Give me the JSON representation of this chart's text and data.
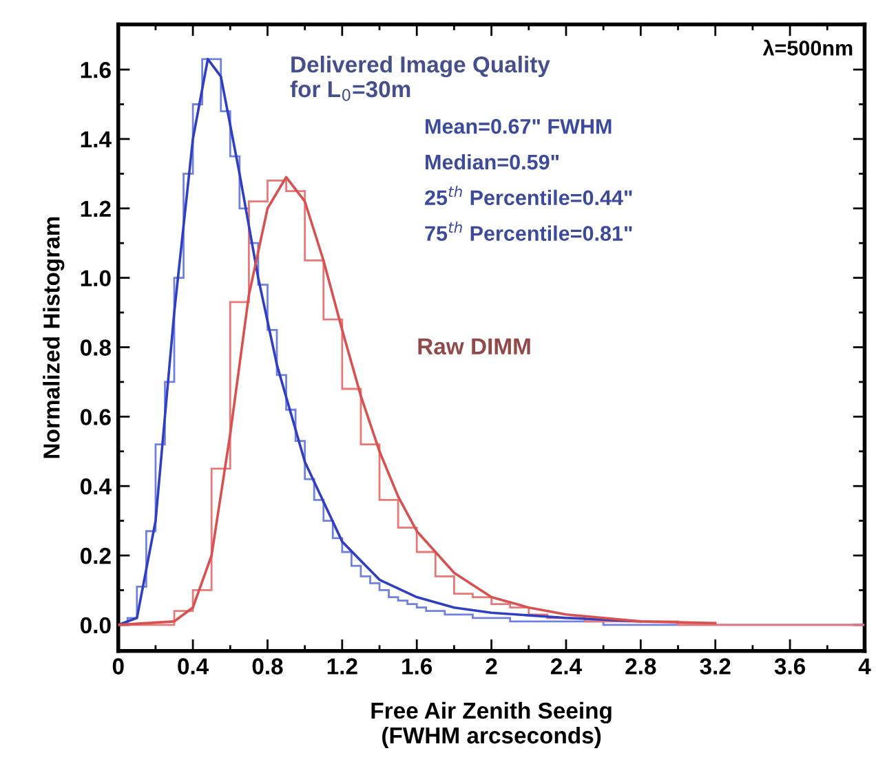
{
  "chart_data": {
    "type": "histogram",
    "xlabel": "Free Air Zenith Seeing\n(FWHM arcseconds)",
    "ylabel": "Normalized Histogram",
    "xlim": [
      0,
      4
    ],
    "ylim": [
      -0.075,
      1.73
    ],
    "xticks": [
      0,
      {
        "value": 0.2,
        "label": null
      },
      0.4,
      {
        "value": 0.6,
        "label": null
      },
      0.8,
      {
        "value": 1.0,
        "label": null
      },
      1.2,
      {
        "value": 1.4,
        "label": null
      },
      1.6,
      {
        "value": 1.8,
        "label": null
      },
      2,
      {
        "value": 2.2,
        "label": null
      },
      2.4,
      {
        "value": 2.6,
        "label": null
      },
      2.8,
      {
        "value": 3.0,
        "label": null
      },
      3.2,
      {
        "value": 3.4,
        "label": null
      },
      3.6,
      {
        "value": 3.8,
        "label": null
      },
      4
    ],
    "yticks": [
      {
        "value": 0,
        "label": "0.0"
      },
      {
        "value": 0.1,
        "label": null
      },
      0.2,
      {
        "value": 0.3,
        "label": null
      },
      0.4,
      {
        "value": 0.5,
        "label": null
      },
      0.6,
      {
        "value": 0.7,
        "label": null
      },
      0.8,
      {
        "value": 0.9,
        "label": null
      },
      {
        "value": 1.0,
        "label": "1.0"
      },
      {
        "value": 1.1,
        "label": null
      },
      1.2,
      {
        "value": 1.3,
        "label": null
      },
      1.4,
      {
        "value": 1.5,
        "label": null
      },
      1.6
    ],
    "grid": false,
    "legend": false,
    "annotations": [
      "λ=500nm",
      "Mean=0.67\" FWHM",
      "Median=0.59\"",
      "25$^{th}$ Percentile=0.44\"",
      "75$^{th}$ Percentile=0.81\""
    ],
    "bins": [
      0,
      0.05,
      0.1,
      0.15,
      0.2,
      0.25,
      0.3,
      0.35,
      0.4,
      0.45,
      0.5,
      0.55,
      0.6,
      0.65,
      0.7,
      0.75,
      0.8,
      0.85,
      0.9,
      0.95,
      1.0,
      1.05,
      1.1,
      1.15,
      1.2,
      1.25,
      1.3,
      1.35,
      1.4,
      1.45,
      1.5,
      1.55,
      1.6,
      1.65,
      1.7,
      1.75,
      1.8,
      1.85,
      1.9,
      1.95,
      2.0,
      2.05,
      2.1,
      2.15,
      2.2,
      2.25,
      2.3,
      2.35,
      2.4,
      2.45,
      2.5,
      2.55,
      2.6,
      2.65,
      2.7,
      2.75,
      2.8,
      2.85,
      2.9,
      2.95,
      3.0,
      3.05,
      3.1,
      3.15,
      3.2,
      3.25,
      3.3,
      3.35,
      3.4,
      3.45,
      3.5,
      3.55,
      3.6,
      3.65,
      3.7,
      3.75,
      3.8,
      3.85,
      3.9,
      3.95,
      4.0
    ],
    "series": [
      {
        "name": "Delivered Image Quality\nfor L$_{0}$=30m",
        "color": "#7080e0",
        "values": [
          0,
          0.02,
          0.11,
          0.27,
          0.52,
          0.7,
          1.0,
          1.3,
          1.5,
          1.63,
          1.63,
          1.48,
          1.35,
          1.2,
          1.1,
          0.98,
          0.85,
          0.72,
          0.62,
          0.53,
          0.42,
          0.36,
          0.3,
          0.25,
          0.21,
          0.17,
          0.14,
          0.12,
          0.1,
          0.08,
          0.07,
          0.06,
          0.05,
          0.04,
          0.04,
          0.03,
          0.03,
          0.03,
          0.02,
          0.02,
          0.02,
          0.02,
          0.01,
          0.01,
          0.01,
          0.01,
          0.01,
          0.01,
          0.01,
          0.01,
          0.01,
          0.01,
          0,
          0,
          0,
          0,
          0,
          0,
          0,
          0,
          0,
          0,
          0,
          0,
          0,
          0,
          0,
          0,
          0,
          0,
          0,
          0,
          0,
          0,
          0,
          0,
          0,
          0,
          0,
          0
        ]
      },
      {
        "type": "line",
        "color": "#2f3fc0",
        "x": [
          0,
          0.1,
          0.2,
          0.3,
          0.4,
          0.48,
          0.55,
          0.65,
          0.75,
          0.85,
          1.0,
          1.2,
          1.4,
          1.6,
          1.8,
          2.0,
          2.4,
          2.8
        ],
        "values": [
          0,
          0.02,
          0.3,
          0.9,
          1.4,
          1.63,
          1.58,
          1.3,
          1.0,
          0.75,
          0.47,
          0.24,
          0.13,
          0.08,
          0.05,
          0.035,
          0.02,
          0.01
        ]
      },
      {
        "name": "Raw DIMM",
        "color": "#e87878",
        "values": [
          0,
          0,
          0,
          0,
          0,
          0,
          0.04,
          0.04,
          0.1,
          0.1,
          0.45,
          0.45,
          0.93,
          0.93,
          1.22,
          1.22,
          1.28,
          1.28,
          1.25,
          1.25,
          1.05,
          1.05,
          0.88,
          0.88,
          0.68,
          0.68,
          0.52,
          0.52,
          0.36,
          0.36,
          0.28,
          0.28,
          0.21,
          0.21,
          0.14,
          0.14,
          0.09,
          0.09,
          0.08,
          0.08,
          0.06,
          0.06,
          0.05,
          0.05,
          0.03,
          0.03,
          0.02,
          0.02,
          0.02,
          0.02,
          0.01,
          0.01,
          0.01,
          0.01,
          0.01,
          0.01,
          0.01,
          0.01,
          0.01,
          0.01,
          0,
          0,
          0,
          0,
          0,
          0,
          0,
          0,
          0,
          0,
          0,
          0,
          0,
          0,
          0,
          0,
          0,
          0,
          0,
          0
        ]
      },
      {
        "type": "line",
        "color": "#d85050",
        "x": [
          0,
          0.3,
          0.4,
          0.5,
          0.6,
          0.7,
          0.8,
          0.9,
          1.0,
          1.1,
          1.2,
          1.3,
          1.4,
          1.5,
          1.6,
          1.8,
          2.0,
          2.2,
          2.4,
          2.8,
          3.2
        ],
        "values": [
          0,
          0.01,
          0.05,
          0.2,
          0.55,
          0.95,
          1.2,
          1.29,
          1.22,
          1.05,
          0.85,
          0.66,
          0.5,
          0.37,
          0.27,
          0.15,
          0.08,
          0.05,
          0.03,
          0.01,
          0.005
        ]
      }
    ]
  }
}
